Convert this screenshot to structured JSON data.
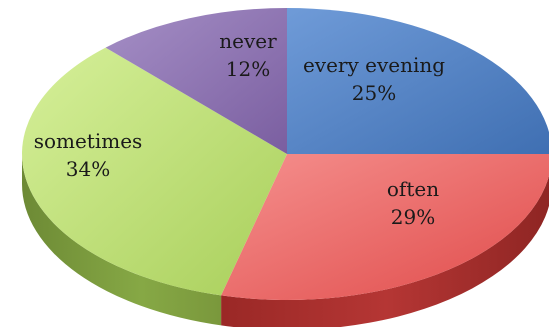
{
  "chart_data": {
    "type": "pie",
    "style": "3d",
    "categories": [
      "every evening",
      "often",
      "sometimes",
      "never"
    ],
    "values": [
      25,
      29,
      34,
      12
    ],
    "labels": [
      "25%",
      "29%",
      "34%",
      "12%"
    ],
    "colors": {
      "every evening": "#4f81bd",
      "often": "#e5504f",
      "sometimes": "#9bbb59",
      "never": "#8064a2"
    },
    "title": "",
    "legend": "none"
  }
}
